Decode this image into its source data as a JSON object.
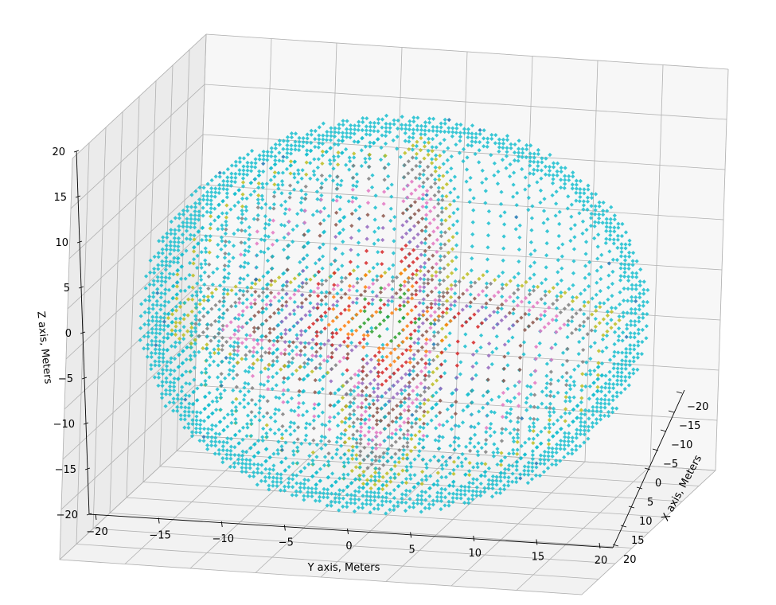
{
  "chart_data": {
    "type": "scatter",
    "projection": "3d",
    "title": "",
    "xlabel": "X axis, Meters",
    "ylabel": "Y axis, Meters",
    "zlabel": "Z axis, Meters",
    "xlim": [
      -20,
      20
    ],
    "ylim": [
      -20,
      20
    ],
    "zlim": [
      -20,
      20
    ],
    "x_ticks": [
      "−20",
      "−15",
      "−10",
      "−5",
      "0",
      "5",
      "10",
      "15",
      "20"
    ],
    "y_ticks": [
      "−20",
      "−15",
      "−10",
      "−5",
      "0",
      "5",
      "10",
      "15",
      "20"
    ],
    "z_ticks": [
      "−20",
      "−15",
      "−10",
      "−5",
      "0",
      "5",
      "10",
      "15",
      "20"
    ],
    "tick_values": [
      -20,
      -15,
      -10,
      -5,
      0,
      5,
      10,
      15,
      20
    ],
    "grid": true,
    "legend": "none",
    "shape": "sphere",
    "sphere_radius": 19,
    "grid_spacing": 1.2,
    "point_marker": "diamond",
    "series": [
      {
        "shell_radius": [
          0,
          3
        ],
        "color": "#2ca02c"
      },
      {
        "shell_radius": [
          3,
          5
        ],
        "color": "#ff7f0e"
      },
      {
        "shell_radius": [
          5,
          7
        ],
        "color": "#d62728"
      },
      {
        "shell_radius": [
          7,
          9
        ],
        "color": "#9467bd"
      },
      {
        "shell_radius": [
          9,
          11
        ],
        "color": "#8c564b"
      },
      {
        "shell_radius": [
          11,
          13
        ],
        "color": "#e377c2"
      },
      {
        "shell_radius": [
          13,
          15
        ],
        "color": "#7f7f7f"
      },
      {
        "shell_radius": [
          15,
          17
        ],
        "color": "#bcbd22"
      },
      {
        "shell_radius": [
          17,
          19
        ],
        "color": "#17becf"
      }
    ],
    "outlier_color": "#1f77b4"
  }
}
